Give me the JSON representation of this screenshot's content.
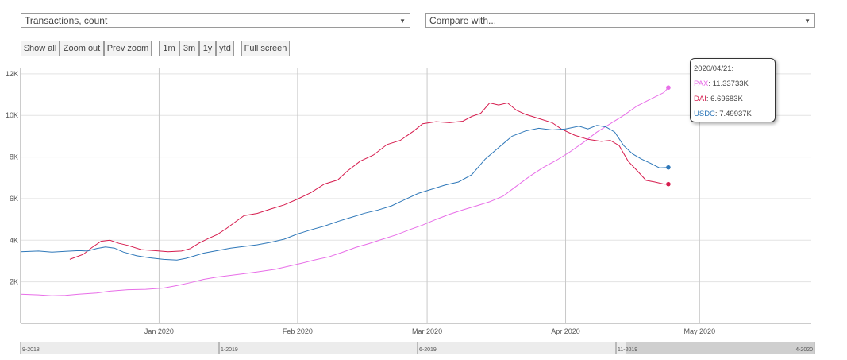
{
  "controls": {
    "metric_select": "Transactions, count",
    "compare_select": "Compare with...",
    "buttons": [
      "Show all",
      "Zoom out",
      "Prev zoom",
      "1m",
      "3m",
      "1y",
      "ytd",
      "Full screen"
    ]
  },
  "tooltip": {
    "date": "2020/04/21:",
    "rows": [
      {
        "name": "PAX",
        "value": "11.33733K",
        "color": "#e86ee8"
      },
      {
        "name": "DAI",
        "value": "6.69683K",
        "color": "#d61c4e"
      },
      {
        "name": "USDC",
        "value": "7.49937K",
        "color": "#2f78b9"
      }
    ]
  },
  "navigator": {
    "labels": [
      "9-2018",
      "1-2019",
      "6-2019",
      "11-2019",
      "4-2020"
    ]
  },
  "chart_data": {
    "type": "line",
    "title": "",
    "xlabel": "",
    "ylabel": "",
    "x_ticks": [
      {
        "label": "Jan 2020",
        "day": 0
      },
      {
        "label": "Feb 2020",
        "day": 31
      },
      {
        "label": "Mar 2020",
        "day": 60
      },
      {
        "label": "Apr 2020",
        "day": 91
      },
      {
        "label": "May 2020",
        "day": 121
      }
    ],
    "y_ticks": [
      {
        "label": "2K",
        "value": 2000
      },
      {
        "label": "4K",
        "value": 4000
      },
      {
        "label": "6K",
        "value": 6000
      },
      {
        "label": "8K",
        "value": 8000
      },
      {
        "label": "10K",
        "value": 10000
      },
      {
        "label": "12K",
        "value": 12000
      }
    ],
    "xlim": [
      -31,
      146
    ],
    "ylim": [
      0,
      12300
    ],
    "grid": true,
    "series": [
      {
        "name": "PAX",
        "color": "#e86ee8",
        "points": [
          [
            -31,
            1400
          ],
          [
            -27,
            1370
          ],
          [
            -24,
            1330
          ],
          [
            -21,
            1350
          ],
          [
            -18,
            1400
          ],
          [
            -14,
            1460
          ],
          [
            -11,
            1550
          ],
          [
            -7,
            1620
          ],
          [
            -3,
            1640
          ],
          [
            1,
            1700
          ],
          [
            4,
            1820
          ],
          [
            7,
            1960
          ],
          [
            10,
            2120
          ],
          [
            13,
            2230
          ],
          [
            16,
            2310
          ],
          [
            19,
            2390
          ],
          [
            22,
            2480
          ],
          [
            26,
            2600
          ],
          [
            29,
            2750
          ],
          [
            32,
            2900
          ],
          [
            35,
            3060
          ],
          [
            38,
            3200
          ],
          [
            41,
            3420
          ],
          [
            44,
            3650
          ],
          [
            47,
            3840
          ],
          [
            50,
            4050
          ],
          [
            53,
            4250
          ],
          [
            56,
            4500
          ],
          [
            59,
            4730
          ],
          [
            62,
            5000
          ],
          [
            65,
            5250
          ],
          [
            68,
            5460
          ],
          [
            71,
            5650
          ],
          [
            74,
            5850
          ],
          [
            77,
            6120
          ],
          [
            80,
            6600
          ],
          [
            83,
            7080
          ],
          [
            86,
            7500
          ],
          [
            89,
            7850
          ],
          [
            92,
            8250
          ],
          [
            95,
            8700
          ],
          [
            98,
            9200
          ],
          [
            101,
            9600
          ],
          [
            104,
            10000
          ],
          [
            107,
            10450
          ],
          [
            110,
            10780
          ],
          [
            113,
            11100
          ],
          [
            114,
            11337
          ]
        ]
      },
      {
        "name": "DAI",
        "color": "#d61c4e",
        "points": [
          [
            -20,
            3080
          ],
          [
            -17,
            3320
          ],
          [
            -15,
            3650
          ],
          [
            -13,
            3950
          ],
          [
            -11,
            4000
          ],
          [
            -9,
            3850
          ],
          [
            -7,
            3750
          ],
          [
            -4,
            3550
          ],
          [
            -1,
            3500
          ],
          [
            2,
            3450
          ],
          [
            5,
            3480
          ],
          [
            7,
            3600
          ],
          [
            9,
            3870
          ],
          [
            11,
            4080
          ],
          [
            13,
            4270
          ],
          [
            15,
            4550
          ],
          [
            17,
            4870
          ],
          [
            19,
            5180
          ],
          [
            22,
            5290
          ],
          [
            25,
            5500
          ],
          [
            28,
            5700
          ],
          [
            31,
            5980
          ],
          [
            34,
            6290
          ],
          [
            37,
            6700
          ],
          [
            40,
            6900
          ],
          [
            42,
            7300
          ],
          [
            45,
            7800
          ],
          [
            48,
            8100
          ],
          [
            51,
            8600
          ],
          [
            54,
            8800
          ],
          [
            57,
            9250
          ],
          [
            59,
            9600
          ],
          [
            62,
            9700
          ],
          [
            65,
            9650
          ],
          [
            68,
            9720
          ],
          [
            70,
            9950
          ],
          [
            72,
            10100
          ],
          [
            74,
            10600
          ],
          [
            76,
            10500
          ],
          [
            78,
            10600
          ],
          [
            80,
            10250
          ],
          [
            82,
            10050
          ],
          [
            85,
            9850
          ],
          [
            88,
            9650
          ],
          [
            90,
            9350
          ],
          [
            93,
            9050
          ],
          [
            96,
            8850
          ],
          [
            99,
            8750
          ],
          [
            101,
            8800
          ],
          [
            103,
            8550
          ],
          [
            105,
            7800
          ],
          [
            107,
            7350
          ],
          [
            109,
            6880
          ],
          [
            111,
            6800
          ],
          [
            113,
            6700
          ],
          [
            114,
            6697
          ]
        ]
      },
      {
        "name": "USDC",
        "color": "#2f78b9",
        "points": [
          [
            -31,
            3450
          ],
          [
            -27,
            3480
          ],
          [
            -24,
            3430
          ],
          [
            -21,
            3470
          ],
          [
            -18,
            3500
          ],
          [
            -16,
            3480
          ],
          [
            -14,
            3600
          ],
          [
            -12,
            3680
          ],
          [
            -10,
            3620
          ],
          [
            -8,
            3430
          ],
          [
            -5,
            3250
          ],
          [
            -2,
            3150
          ],
          [
            1,
            3080
          ],
          [
            4,
            3050
          ],
          [
            6,
            3130
          ],
          [
            8,
            3250
          ],
          [
            10,
            3380
          ],
          [
            13,
            3500
          ],
          [
            16,
            3620
          ],
          [
            19,
            3700
          ],
          [
            22,
            3780
          ],
          [
            25,
            3900
          ],
          [
            28,
            4050
          ],
          [
            31,
            4300
          ],
          [
            34,
            4500
          ],
          [
            37,
            4680
          ],
          [
            40,
            4900
          ],
          [
            43,
            5100
          ],
          [
            46,
            5300
          ],
          [
            49,
            5450
          ],
          [
            52,
            5650
          ],
          [
            55,
            5950
          ],
          [
            58,
            6250
          ],
          [
            61,
            6450
          ],
          [
            64,
            6650
          ],
          [
            67,
            6800
          ],
          [
            70,
            7150
          ],
          [
            73,
            7900
          ],
          [
            76,
            8450
          ],
          [
            79,
            9000
          ],
          [
            82,
            9250
          ],
          [
            85,
            9380
          ],
          [
            88,
            9300
          ],
          [
            91,
            9350
          ],
          [
            94,
            9480
          ],
          [
            96,
            9350
          ],
          [
            98,
            9520
          ],
          [
            100,
            9450
          ],
          [
            102,
            9200
          ],
          [
            104,
            8550
          ],
          [
            106,
            8150
          ],
          [
            108,
            7900
          ],
          [
            110,
            7700
          ],
          [
            112,
            7480
          ],
          [
            114,
            7499
          ]
        ]
      }
    ]
  }
}
